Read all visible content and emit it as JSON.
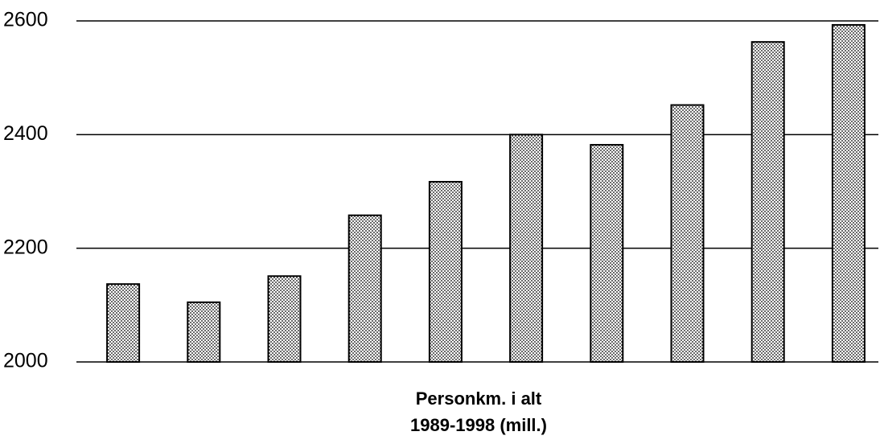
{
  "chart_data": {
    "type": "bar",
    "title": "Personkm. i alt",
    "subtitle": "1989-1998 (mill.)",
    "categories": [
      null,
      null,
      null,
      null,
      null,
      null,
      null,
      null,
      null,
      null
    ],
    "values": [
      2137,
      2105,
      2151,
      2258,
      2317,
      2400,
      2382,
      2452,
      2563,
      2593
    ],
    "color": "#000000",
    "ylim": [
      2000,
      2600
    ],
    "yticks": [
      2000,
      2200,
      2400,
      2600
    ],
    "grid": true
  }
}
